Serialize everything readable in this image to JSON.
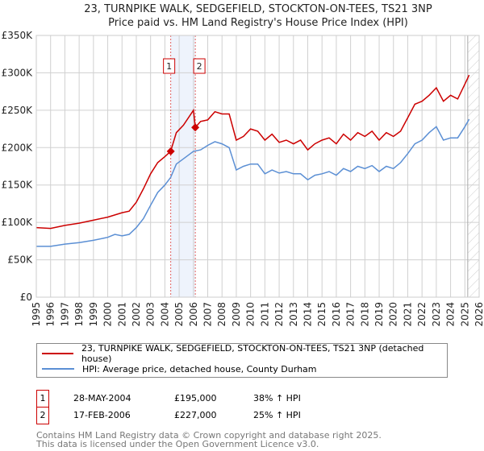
{
  "chart_data": {
    "type": "line",
    "title": "23, TURNPIKE WALK, SEDGEFIELD, STOCKTON-ON-TEES, TS21 3NP",
    "subtitle": "Price paid vs. HM Land Registry's House Price Index (HPI)",
    "xlim": [
      1995,
      2026
    ],
    "ylim": [
      0,
      350000
    ],
    "yticks": [
      {
        "v": 0,
        "label": "£0"
      },
      {
        "v": 50000,
        "label": "£50K"
      },
      {
        "v": 100000,
        "label": "£100K"
      },
      {
        "v": 150000,
        "label": "£150K"
      },
      {
        "v": 200000,
        "label": "£200K"
      },
      {
        "v": 250000,
        "label": "£250K"
      },
      {
        "v": 300000,
        "label": "£300K"
      },
      {
        "v": 350000,
        "label": "£350K"
      }
    ],
    "xticks": [
      "1995",
      "1996",
      "1997",
      "1998",
      "1999",
      "2000",
      "2001",
      "2002",
      "2003",
      "2004",
      "2005",
      "2006",
      "2007",
      "2008",
      "2009",
      "2010",
      "2011",
      "2012",
      "2013",
      "2014",
      "2015",
      "2016",
      "2017",
      "2018",
      "2019",
      "2020",
      "2021",
      "2022",
      "2023",
      "2024",
      "2025",
      "2026"
    ],
    "forecast_start": 2025.2,
    "series": [
      {
        "name": "23, TURNPIKE WALK, SEDGEFIELD, STOCKTON-ON-TEES, TS21 3NP (detached house)",
        "color": "#cc0000",
        "x": [
          1995,
          1996,
          1997,
          1998,
          1999,
          2000,
          2001,
          2001.5,
          2002,
          2002.5,
          2003,
          2003.5,
          2004,
          2004.4,
          2004.8,
          2005.3,
          2006.0,
          2006.13,
          2006.5,
          2007,
          2007.5,
          2008,
          2008.5,
          2009,
          2009.5,
          2010,
          2010.5,
          2011,
          2011.5,
          2012,
          2012.5,
          2013,
          2013.5,
          2014,
          2014.5,
          2015,
          2015.5,
          2016,
          2016.5,
          2017,
          2017.5,
          2018,
          2018.5,
          2019,
          2019.5,
          2020,
          2020.5,
          2021,
          2021.5,
          2022,
          2022.5,
          2023,
          2023.5,
          2024,
          2024.5,
          2025,
          2025.3
        ],
        "y": [
          93,
          92,
          96,
          99,
          103,
          107,
          113,
          115,
          127,
          145,
          165,
          180,
          188,
          195,
          220,
          230,
          250,
          227,
          235,
          237,
          248,
          245,
          245,
          210,
          215,
          225,
          222,
          210,
          218,
          207,
          210,
          205,
          210,
          197,
          205,
          210,
          213,
          205,
          218,
          210,
          220,
          215,
          222,
          210,
          220,
          215,
          222,
          240,
          258,
          262,
          270,
          280,
          262,
          270,
          265,
          285,
          297
        ]
      },
      {
        "name": "HPI: Average price, detached house, County Durham",
        "color": "#5b8fd4",
        "x": [
          1995,
          1996,
          1997,
          1998,
          1999,
          2000,
          2000.5,
          2001,
          2001.5,
          2002,
          2002.5,
          2003,
          2003.5,
          2004,
          2004.4,
          2004.8,
          2005.3,
          2006,
          2006.5,
          2007,
          2007.5,
          2008,
          2008.5,
          2009,
          2009.5,
          2010,
          2010.5,
          2011,
          2011.5,
          2012,
          2012.5,
          2013,
          2013.5,
          2014,
          2014.5,
          2015,
          2015.5,
          2016,
          2016.5,
          2017,
          2017.5,
          2018,
          2018.5,
          2019,
          2019.5,
          2020,
          2020.5,
          2021,
          2021.5,
          2022,
          2022.5,
          2023,
          2023.5,
          2024,
          2024.5,
          2025,
          2025.3
        ],
        "y": [
          68,
          68,
          71,
          73,
          76,
          80,
          84,
          82,
          84,
          93,
          105,
          123,
          140,
          150,
          160,
          178,
          185,
          195,
          197,
          203,
          208,
          205,
          200,
          170,
          175,
          178,
          178,
          165,
          170,
          166,
          168,
          165,
          165,
          157,
          163,
          165,
          168,
          163,
          172,
          168,
          175,
          172,
          176,
          168,
          175,
          172,
          180,
          192,
          205,
          210,
          220,
          228,
          210,
          213,
          213,
          228,
          238
        ]
      }
    ],
    "y_units": "thousands GBP",
    "transactions": [
      {
        "id": "1",
        "x": 2004.41,
        "price": 195000,
        "date": "28-MAY-2004",
        "price_label": "£195,000",
        "hpi": "38% ↑ HPI"
      },
      {
        "id": "2",
        "x": 2006.13,
        "price": 227000,
        "date": "17-FEB-2006",
        "price_label": "£227,000",
        "hpi": "25% ↑ HPI"
      }
    ]
  },
  "legend": {
    "red": "23, TURNPIKE WALK, SEDGEFIELD, STOCKTON-ON-TEES, TS21 3NP (detached house)",
    "blue": "HPI: Average price, detached house, County Durham"
  },
  "footer": {
    "line1": "Contains HM Land Registry data © Crown copyright and database right 2025.",
    "line2": "This data is licensed under the Open Government Licence v3.0."
  }
}
